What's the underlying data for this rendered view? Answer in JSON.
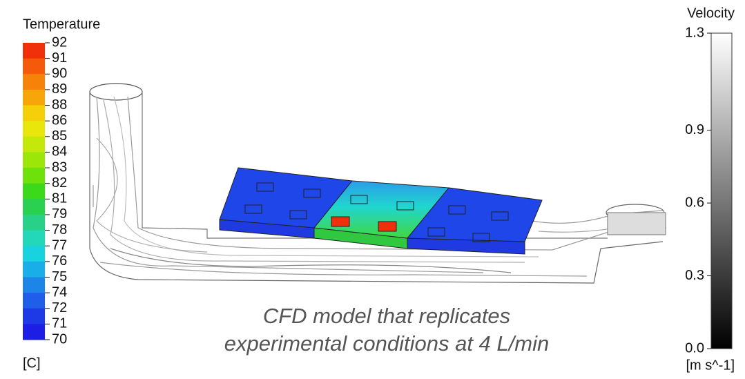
{
  "temperature_legend": {
    "title": "Temperature",
    "unit": "[C]",
    "labels": [
      "92",
      "91",
      "90",
      "89",
      "88",
      "86",
      "85",
      "84",
      "83",
      "82",
      "81",
      "79",
      "78",
      "77",
      "76",
      "75",
      "74",
      "72",
      "71",
      "70"
    ],
    "band_colors": [
      "#f0300a",
      "#f55a0a",
      "#f7820a",
      "#f7a60a",
      "#f5d00a",
      "#e8e60a",
      "#c4e80a",
      "#9ce60a",
      "#6ee00a",
      "#3cd81a",
      "#2ad050",
      "#28d088",
      "#22d8b8",
      "#18d2e0",
      "#1aaee8",
      "#1c86e8",
      "#1e5ee8",
      "#1e3ae6",
      "#1c1ee6"
    ]
  },
  "velocity_legend": {
    "title": "Velocity",
    "unit": "[m s^-1]",
    "scale": [
      0,
      1.3
    ],
    "ticks": [
      {
        "value": 1.3,
        "label": "1.3"
      },
      0.9,
      0.6,
      0.3,
      {
        "value": 0,
        "label": "0.0"
      }
    ]
  },
  "caption": [
    "CFD model that replicates",
    "experimental conditions at 4 L/min"
  ]
}
